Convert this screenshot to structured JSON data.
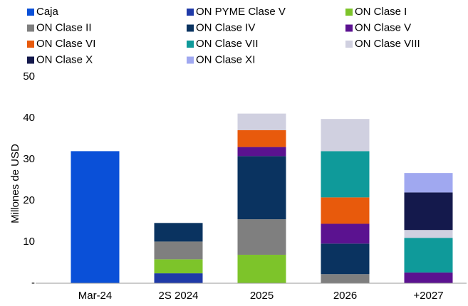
{
  "chart_data": {
    "type": "stacked_bar",
    "y_label": "Millones de USD",
    "categories": [
      "Mar-24",
      "2S 2024",
      "2025",
      "2026",
      "+2027"
    ],
    "series": [
      {
        "name": "Caja",
        "color": "#0a50d8",
        "values": [
          32,
          null,
          null,
          null,
          null
        ]
      },
      {
        "name": "ON PYME Clase V",
        "color": "#1f3aa8",
        "values": [
          null,
          2.4,
          null,
          null,
          null
        ]
      },
      {
        "name": "ON Clase I",
        "color": "#7dc42a",
        "values": [
          null,
          3.4,
          6.9,
          null,
          null
        ]
      },
      {
        "name": "ON Clase II",
        "color": "#7f7f7f",
        "values": [
          null,
          4.3,
          8.6,
          2.2,
          null
        ]
      },
      {
        "name": "ON Clase IV",
        "color": "#0a3360",
        "values": [
          null,
          4.5,
          15.3,
          7.4,
          null
        ]
      },
      {
        "name": "ON Clase V",
        "color": "#5b1290",
        "values": [
          null,
          null,
          2.2,
          4.8,
          2.6
        ]
      },
      {
        "name": "ON Clase VI",
        "color": "#e85a0c",
        "values": [
          null,
          null,
          4.1,
          6.4,
          null
        ]
      },
      {
        "name": "ON Clase VII",
        "color": "#0f9a9a",
        "values": [
          null,
          null,
          null,
          11.2,
          8.4
        ]
      },
      {
        "name": "ON Clase VIII",
        "color": "#d0d0e0",
        "values": [
          null,
          null,
          4.0,
          7.8,
          1.9
        ]
      },
      {
        "name": "ON Clase X",
        "color": "#14194c",
        "values": [
          null,
          null,
          null,
          null,
          9.1
        ]
      },
      {
        "name": "ON Clase XI",
        "color": "#a0a8f0",
        "values": [
          null,
          null,
          null,
          null,
          4.7
        ]
      }
    ],
    "ylim": [
      0,
      50
    ],
    "yticks": [
      {
        "value": 0,
        "label": "-"
      },
      10,
      20,
      30,
      40,
      50
    ],
    "legend": "top"
  }
}
